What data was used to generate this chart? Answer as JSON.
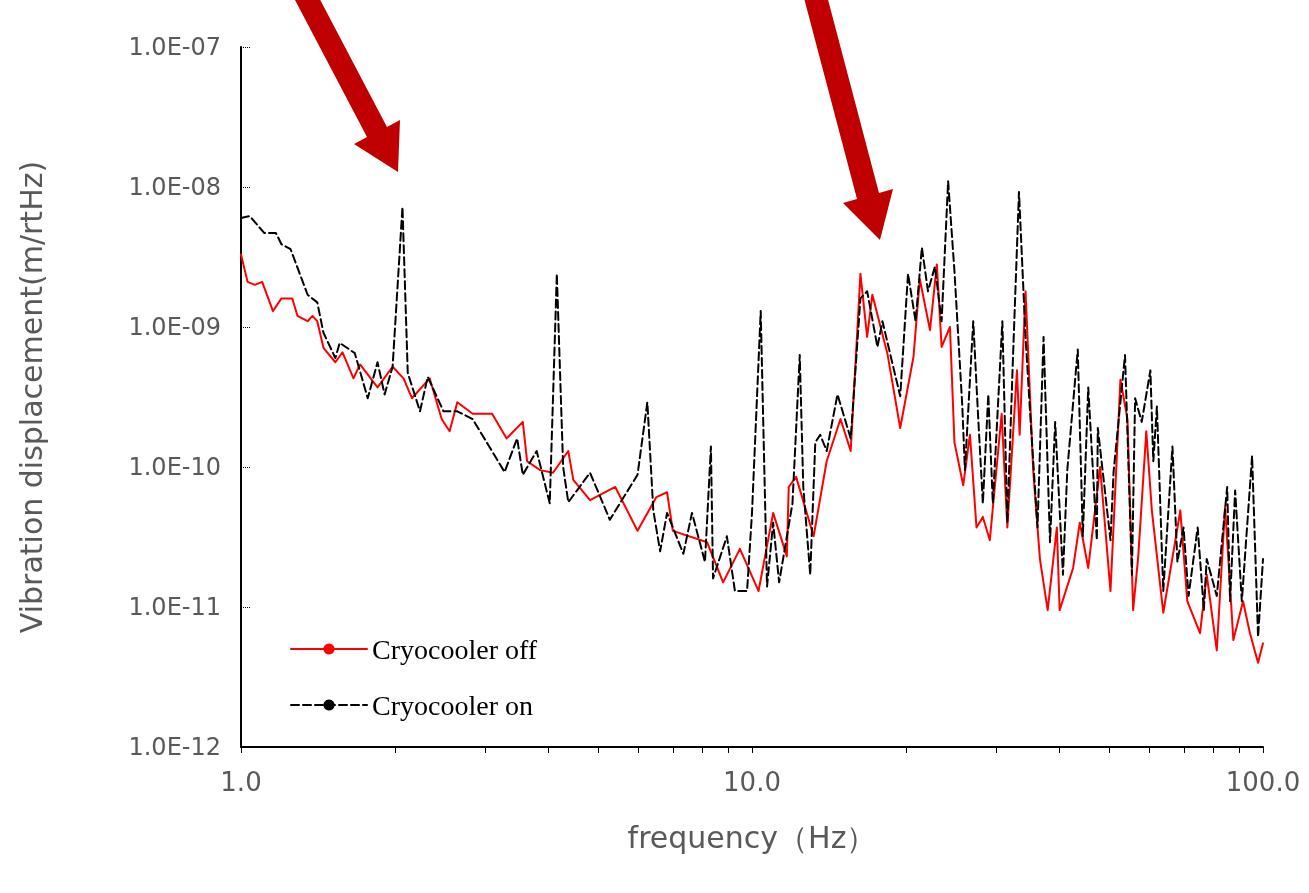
{
  "chart_data": {
    "type": "line",
    "xlabel": "frequency（Hz）",
    "ylabel": "Vibration displacement(m/rtHz)",
    "log": "xy",
    "legend": "bottom left",
    "xlim": [
      1,
      100
    ],
    "ylim": [
      1e-12,
      1e-07
    ],
    "xticks": [
      {
        "value": 1,
        "label": "1.0"
      },
      {
        "value": 2,
        "label": null
      },
      {
        "value": 3,
        "label": null
      },
      {
        "value": 4,
        "label": null
      },
      {
        "value": 5,
        "label": null
      },
      {
        "value": 6,
        "label": null
      },
      {
        "value": 7,
        "label": null
      },
      {
        "value": 8,
        "label": null
      },
      {
        "value": 9,
        "label": null
      },
      {
        "value": 10,
        "label": "10.0"
      },
      {
        "value": 20,
        "label": null
      },
      {
        "value": 30,
        "label": null
      },
      {
        "value": 40,
        "label": null
      },
      {
        "value": 50,
        "label": null
      },
      {
        "value": 60,
        "label": null
      },
      {
        "value": 70,
        "label": null
      },
      {
        "value": 80,
        "label": null
      },
      {
        "value": 90,
        "label": null
      },
      {
        "value": 100,
        "label": "100.0"
      }
    ],
    "yticks": [
      {
        "value": 1e-12,
        "label": "1.0E-12"
      },
      {
        "value": 1e-11,
        "label": "1.0E-11"
      },
      {
        "value": 1e-10,
        "label": "1.0E-10"
      },
      {
        "value": 1e-09,
        "label": "1.0E-09"
      },
      {
        "value": 1e-08,
        "label": "1.0E-08"
      },
      {
        "value": 1e-07,
        "label": "1.0E-07"
      }
    ],
    "series": [
      {
        "name": "Cryocooler off",
        "color": "#ff0000",
        "line_style": "solid",
        "x": [
          1.0,
          1.03,
          1.065,
          1.1,
          1.155,
          1.2,
          1.26,
          1.29,
          1.35,
          1.38,
          1.41,
          1.45,
          1.53,
          1.58,
          1.66,
          1.71,
          1.85,
          1.98,
          2.08,
          2.16,
          2.34,
          2.47,
          2.56,
          2.65,
          2.84,
          3.1,
          3.31,
          3.56,
          3.63,
          3.85,
          4.08,
          4.37,
          4.47,
          4.82,
          5.4,
          5.97,
          6.5,
          6.82,
          7.0,
          8.17,
          8.78,
          9.47,
          10.3,
          11.0,
          11.7,
          11.8,
          12.2,
          13.2,
          14.0,
          14.9,
          15.6,
          16.3,
          16.8,
          17.2,
          18.4,
          19.5,
          20.7,
          21.3,
          22.3,
          23.0,
          23.5,
          24.4,
          24.9,
          25.9,
          26.7,
          27.5,
          28.3,
          29.2,
          30.8,
          31.6,
          33.0,
          33.4,
          34.3,
          35.5,
          36.6,
          37.9,
          39.5,
          40.0,
          42.5,
          43.8,
          45.5,
          48.0,
          50.3,
          52.6,
          54.3,
          55.7,
          57.0,
          59.1,
          60.6,
          63.8,
          68.9,
          71.1,
          75.3,
          77.6,
          81.2,
          84.3,
          87.5,
          91.4,
          94.3,
          97.8,
          100
        ],
        "values": [
          3.3e-09,
          2.1e-09,
          2e-09,
          2.1e-09,
          1.3e-09,
          1.6e-09,
          1.6e-09,
          1.2e-09,
          1.1e-09,
          1.2e-09,
          1.1e-09,
          7.1e-10,
          5.6e-10,
          6.6e-10,
          4.3e-10,
          5.4e-10,
          3.7e-10,
          5.2e-10,
          4.3e-10,
          3.1e-10,
          4.3e-10,
          2.2e-10,
          1.8e-10,
          2.9e-10,
          2.4e-10,
          2.4e-10,
          1.6e-10,
          2.1e-10,
          1.1e-10,
          9.5e-11,
          9.1e-11,
          1.3e-10,
          8.1e-11,
          5.8e-11,
          7.2e-11,
          3.5e-11,
          6.1e-11,
          6.6e-11,
          3.5e-11,
          2.9e-11,
          1.5e-11,
          2.6e-11,
          1.3e-11,
          4.7e-11,
          2.3e-11,
          7.2e-11,
          8.5e-11,
          3.2e-11,
          1.1e-10,
          2.2e-10,
          1.3e-10,
          2.4e-09,
          8.5e-10,
          1.7e-09,
          6.5e-10,
          1.9e-10,
          6.1e-10,
          2.2e-09,
          9.5e-10,
          2.8e-09,
          7.2e-10,
          1e-09,
          1.5e-10,
          7.4e-11,
          1.7e-10,
          3.7e-11,
          4.4e-11,
          3e-11,
          2.4e-10,
          3.7e-11,
          4.9e-10,
          1.7e-10,
          1.8e-09,
          9.5e-11,
          2.2e-11,
          9.5e-12,
          3.7e-11,
          9.5e-12,
          1.9e-11,
          4e-11,
          1.9e-11,
          1e-10,
          1.3e-11,
          4.2e-10,
          2.2e-10,
          9.5e-12,
          2.3e-11,
          1.8e-10,
          4.9e-11,
          9.1e-12,
          4.9e-11,
          1.1e-11,
          6.5e-12,
          1.7e-11,
          4.9e-12,
          5.2e-11,
          5.8e-12,
          1.1e-11,
          6.5e-12,
          4e-12,
          5.5e-12
        ]
      },
      {
        "name": "Cryocooler on",
        "color": "#000000",
        "line_style": "dashed",
        "x": [
          1.0,
          1.04,
          1.11,
          1.17,
          1.2,
          1.25,
          1.35,
          1.41,
          1.45,
          1.53,
          1.56,
          1.67,
          1.77,
          1.85,
          1.91,
          1.98,
          2.07,
          2.12,
          2.24,
          2.32,
          2.49,
          2.65,
          2.84,
          3.28,
          3.47,
          3.56,
          3.79,
          4.02,
          4.15,
          4.27,
          4.37,
          4.82,
          5.27,
          5.97,
          6.24,
          6.41,
          6.61,
          6.82,
          7.34,
          7.63,
          8.09,
          8.31,
          8.39,
          8.93,
          9.26,
          9.78,
          10.0,
          10.4,
          10.7,
          11.0,
          11.3,
          12.0,
          12.4,
          12.6,
          13.0,
          13.3,
          13.6,
          14.0,
          14.7,
          15.6,
          16.3,
          16.8,
          17.6,
          18.0,
          19.5,
          20.2,
          20.9,
          21.5,
          22.1,
          22.8,
          23.5,
          24.2,
          24.9,
          25.8,
          26.1,
          27.1,
          27.7,
          28.3,
          29.0,
          29.6,
          30.9,
          31.6,
          32.4,
          33.3,
          34.3,
          35.0,
          36.2,
          37.2,
          38.3,
          39.2,
          40.6,
          41.4,
          43.4,
          44.4,
          45.5,
          47.3,
          47.5,
          50.3,
          51.0,
          53.7,
          55.4,
          56.2,
          57.9,
          60.2,
          61.0,
          62.0,
          63.8,
          66.5,
          68.0,
          69.9,
          71.5,
          74.5,
          76.6,
          77.6,
          81.2,
          85.1,
          86.2,
          88.2,
          90.9,
          95.2,
          97.8,
          100
        ],
        "values": [
          6e-09,
          6.2e-09,
          4.7e-09,
          4.7e-09,
          3.9e-09,
          3.6e-09,
          1.7e-09,
          1.5e-09,
          9.1e-10,
          6e-10,
          7.7e-10,
          6.5e-10,
          3.1e-10,
          5.6e-10,
          3.3e-10,
          5.2e-10,
          7.2e-09,
          4.7e-10,
          2.5e-10,
          4.4e-10,
          2.5e-10,
          2.5e-10,
          2.2e-10,
          9.2e-11,
          1.6e-10,
          8.8e-11,
          1.3e-10,
          5.5e-11,
          2.4e-09,
          1e-10,
          5.6e-11,
          9.1e-11,
          4.2e-11,
          8.8e-11,
          2.9e-10,
          4.9e-11,
          2.5e-11,
          4.7e-11,
          2.4e-11,
          4.7e-11,
          2.1e-11,
          1.4e-10,
          1.6e-11,
          3.2e-11,
          1.3e-11,
          1.3e-11,
          4.7e-11,
          1.3e-09,
          1.4e-11,
          4e-11,
          1.5e-11,
          5.5e-11,
          6.3e-10,
          7.2e-11,
          1.7e-11,
          1.5e-10,
          1.7e-10,
          1.3e-10,
          3.3e-10,
          1.6e-10,
          1.6e-09,
          1.8e-09,
          7.2e-10,
          1.1e-09,
          3.2e-10,
          2.4e-09,
          1.1e-09,
          3.7e-09,
          1.8e-09,
          2.7e-09,
          1.1e-09,
          1.1e-08,
          2.5e-09,
          2.7e-10,
          9.5e-11,
          1.1e-09,
          2.3e-10,
          5.5e-11,
          3.3e-10,
          5.5e-11,
          1.1e-09,
          4e-11,
          5.8e-10,
          9.2e-09,
          8.5e-10,
          2.5e-10,
          3.7e-11,
          8.5e-10,
          2.9e-11,
          2.1e-10,
          1.7e-11,
          9.5e-11,
          6.9e-10,
          3.2e-11,
          3.7e-10,
          3e-11,
          1.9e-10,
          3e-11,
          9.2e-11,
          6.3e-10,
          1.7e-11,
          3.1e-10,
          2.1e-10,
          4.9e-10,
          1.1e-10,
          2.7e-10,
          1.3e-11,
          1.4e-10,
          2.1e-11,
          3.7e-11,
          1.2e-11,
          3.7e-11,
          9.5e-12,
          2.2e-11,
          1.2e-11,
          7.2e-11,
          1.1e-11,
          6.8e-11,
          1.1e-11,
          1.2e-10,
          6.1e-12,
          2.2e-11
        ]
      }
    ]
  }
}
